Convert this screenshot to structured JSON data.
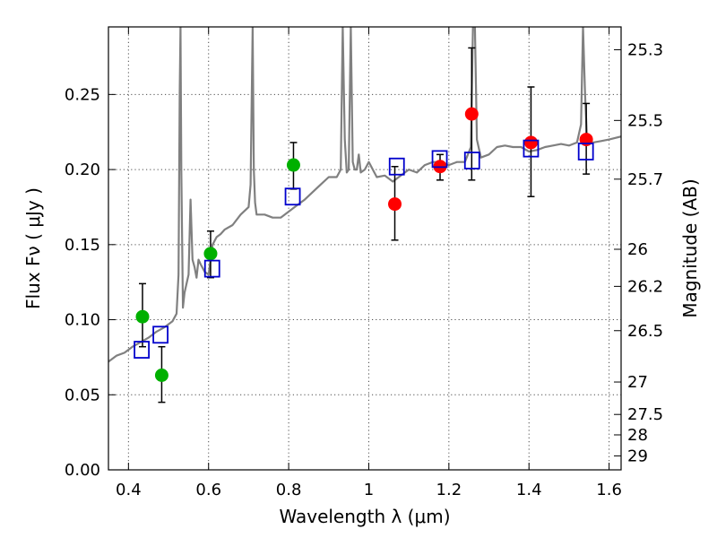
{
  "chart_data": {
    "type": "scatter",
    "title": "",
    "xlabel": "Wavelength  λ (μm)",
    "ylabel": "Flux  Fν  ( μJy )",
    "y2label": "Magnitude (AB)",
    "xlim": [
      0.35,
      1.63
    ],
    "ylim": [
      0.0,
      0.295
    ],
    "grid": true,
    "x_ticks": [
      0.4,
      0.6,
      0.8,
      1.0,
      1.2,
      1.4,
      1.6
    ],
    "x_tick_labels": [
      "0.4",
      "0.6",
      "0.8",
      "1",
      "1.2",
      "1.4",
      "1.6"
    ],
    "y_ticks": [
      0.0,
      0.05,
      0.1,
      0.15,
      0.2,
      0.25
    ],
    "y_tick_labels": [
      "0.00",
      "0.05",
      "0.10",
      "0.15",
      "0.20",
      "0.25"
    ],
    "y2_ticks": [
      {
        "label": "25.3",
        "flux": 0.2798
      },
      {
        "label": "25.5",
        "flux": 0.2327
      },
      {
        "label": "25.7",
        "flux": 0.1936
      },
      {
        "label": "26",
        "flux": 0.1469
      },
      {
        "label": "26.2",
        "flux": 0.1222
      },
      {
        "label": "26.5",
        "flux": 0.0927
      },
      {
        "label": "27",
        "flux": 0.0585
      },
      {
        "label": "27.5",
        "flux": 0.0369
      },
      {
        "label": "28",
        "flux": 0.0233
      },
      {
        "label": "29",
        "flux": 0.0093
      }
    ],
    "series": [
      {
        "kind": "line",
        "color": "#808080",
        "x": [
          0.35,
          0.37,
          0.39,
          0.41,
          0.43,
          0.45,
          0.47,
          0.49,
          0.5,
          0.51,
          0.52,
          0.525,
          0.528,
          0.53,
          0.532,
          0.536,
          0.54,
          0.55,
          0.555,
          0.56,
          0.565,
          0.57,
          0.575,
          0.58,
          0.59,
          0.6,
          0.61,
          0.62,
          0.63,
          0.64,
          0.66,
          0.68,
          0.7,
          0.705,
          0.71,
          0.713,
          0.716,
          0.72,
          0.74,
          0.76,
          0.78,
          0.8,
          0.82,
          0.84,
          0.86,
          0.88,
          0.9,
          0.92,
          0.93,
          0.935,
          0.94,
          0.945,
          0.95,
          0.955,
          0.96,
          0.965,
          0.97,
          0.975,
          0.98,
          0.99,
          1.0,
          1.02,
          1.04,
          1.06,
          1.08,
          1.1,
          1.12,
          1.14,
          1.16,
          1.18,
          1.2,
          1.22,
          1.24,
          1.255,
          1.26,
          1.265,
          1.27,
          1.28,
          1.3,
          1.32,
          1.34,
          1.36,
          1.38,
          1.4,
          1.42,
          1.44,
          1.46,
          1.48,
          1.5,
          1.52,
          1.53,
          1.535,
          1.54,
          1.545,
          1.55,
          1.56,
          1.58,
          1.6,
          1.63
        ],
        "y": [
          0.072,
          0.076,
          0.078,
          0.082,
          0.085,
          0.088,
          0.092,
          0.095,
          0.097,
          0.099,
          0.104,
          0.13,
          0.25,
          0.295,
          0.2,
          0.108,
          0.118,
          0.13,
          0.18,
          0.14,
          0.135,
          0.128,
          0.14,
          0.137,
          0.132,
          0.13,
          0.15,
          0.155,
          0.157,
          0.16,
          0.163,
          0.17,
          0.175,
          0.19,
          0.295,
          0.2,
          0.178,
          0.17,
          0.17,
          0.168,
          0.168,
          0.172,
          0.176,
          0.18,
          0.185,
          0.19,
          0.195,
          0.195,
          0.2,
          0.295,
          0.22,
          0.198,
          0.2,
          0.295,
          0.205,
          0.2,
          0.2,
          0.21,
          0.198,
          0.2,
          0.205,
          0.195,
          0.196,
          0.192,
          0.196,
          0.2,
          0.198,
          0.203,
          0.205,
          0.205,
          0.203,
          0.205,
          0.205,
          0.215,
          0.295,
          0.295,
          0.22,
          0.208,
          0.21,
          0.215,
          0.216,
          0.215,
          0.215,
          0.212,
          0.213,
          0.215,
          0.216,
          0.217,
          0.216,
          0.218,
          0.23,
          0.295,
          0.25,
          0.22,
          0.218,
          0.218,
          0.219,
          0.22,
          0.222
        ]
      },
      {
        "kind": "points",
        "marker": "circle",
        "color": "#00b000",
        "x": [
          0.435,
          0.483,
          0.605,
          0.812
        ],
        "y": [
          0.102,
          0.063,
          0.144,
          0.203
        ],
        "yerr_low": [
          0.082,
          0.045,
          0.128,
          0.187
        ],
        "yerr_high": [
          0.124,
          0.082,
          0.159,
          0.218
        ]
      },
      {
        "kind": "points",
        "marker": "circle",
        "color": "#ff0000",
        "x": [
          1.065,
          1.178,
          1.257,
          1.405,
          1.543
        ],
        "y": [
          0.177,
          0.202,
          0.237,
          0.218,
          0.22
        ],
        "yerr_low": [
          0.153,
          0.193,
          0.193,
          0.182,
          0.197
        ],
        "yerr_high": [
          0.202,
          0.21,
          0.281,
          0.255,
          0.244
        ]
      },
      {
        "kind": "points",
        "marker": "square",
        "color": "#0000cc",
        "x": [
          0.433,
          0.48,
          0.609,
          0.81,
          1.07,
          1.177,
          1.258,
          1.405,
          1.542
        ],
        "y": [
          0.08,
          0.09,
          0.134,
          0.182,
          0.202,
          0.207,
          0.206,
          0.214,
          0.212
        ]
      }
    ]
  }
}
